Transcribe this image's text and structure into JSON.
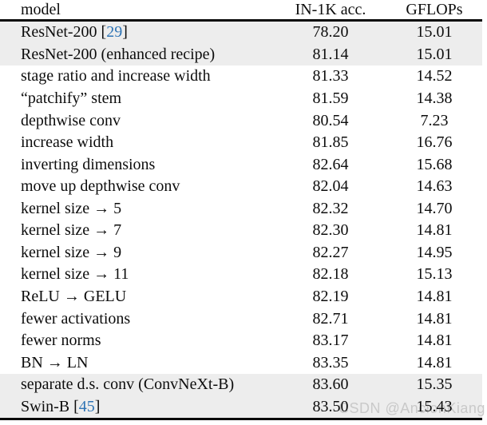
{
  "header": {
    "model": "model",
    "acc": "IN-1K acc.",
    "gflops": "GFLOPs"
  },
  "watermark": {
    "text": "CSDN @AnclonKiang"
  },
  "colors": {
    "row_stripe": "#ededed",
    "citation_blue": "#2e74b5",
    "rule_black": "#0a0a0a",
    "watermark_gray": "#c9c9c9"
  },
  "table": {
    "columns": [
      "model",
      "IN-1K acc.",
      "GFLOPs"
    ],
    "rows": [
      {
        "model": "ResNet-200",
        "cite": "29",
        "acc": "78.20",
        "gflops": "15.01",
        "shaded": true
      },
      {
        "model": "ResNet-200 (enhanced recipe)",
        "cite": null,
        "acc": "81.14",
        "gflops": "15.01",
        "shaded": true
      },
      {
        "model": "stage ratio and increase width",
        "cite": null,
        "acc": "81.33",
        "gflops": "14.52",
        "shaded": false
      },
      {
        "model": "“patchify” stem",
        "cite": null,
        "acc": "81.59",
        "gflops": "14.38",
        "shaded": false
      },
      {
        "model": "depthwise conv",
        "cite": null,
        "acc": "80.54",
        "gflops": "7.23",
        "shaded": false
      },
      {
        "model": "increase width",
        "cite": null,
        "acc": "81.85",
        "gflops": "16.76",
        "shaded": false
      },
      {
        "model": "inverting dimensions",
        "cite": null,
        "acc": "82.64",
        "gflops": "15.68",
        "shaded": false
      },
      {
        "model": "move up depthwise conv",
        "cite": null,
        "acc": "82.04",
        "gflops": "14.63",
        "shaded": false
      },
      {
        "model": "kernel size → 5",
        "cite": null,
        "acc": "82.32",
        "gflops": "14.70",
        "shaded": false
      },
      {
        "model": "kernel size → 7",
        "cite": null,
        "acc": "82.30",
        "gflops": "14.81",
        "shaded": false
      },
      {
        "model": "kernel size → 9",
        "cite": null,
        "acc": "82.27",
        "gflops": "14.95",
        "shaded": false
      },
      {
        "model": "kernel size → 11",
        "cite": null,
        "acc": "82.18",
        "gflops": "15.13",
        "shaded": false
      },
      {
        "model": "ReLU → GELU",
        "cite": null,
        "acc": "82.19",
        "gflops": "14.81",
        "shaded": false
      },
      {
        "model": "fewer activations",
        "cite": null,
        "acc": "82.71",
        "gflops": "14.81",
        "shaded": false
      },
      {
        "model": "fewer norms",
        "cite": null,
        "acc": "83.17",
        "gflops": "14.81",
        "shaded": false
      },
      {
        "model": "BN → LN",
        "cite": null,
        "acc": "83.35",
        "gflops": "14.81",
        "shaded": false
      },
      {
        "model": "separate d.s. conv (ConvNeXt-B)",
        "cite": null,
        "acc": "83.60",
        "gflops": "15.35",
        "shaded": true
      },
      {
        "model": "Swin-B",
        "cite": "45",
        "acc": "83.50",
        "gflops": "15.43",
        "shaded": true
      }
    ]
  }
}
